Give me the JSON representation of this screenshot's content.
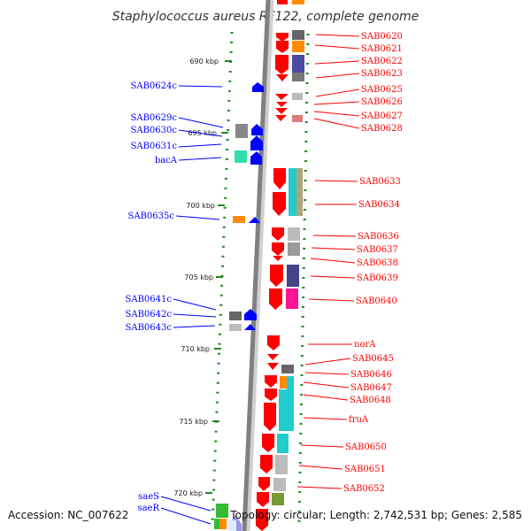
{
  "title": "Staphylococcus aureus RF122, complete genome",
  "footer": {
    "accession": "Accession: NC_007622",
    "topology": "Topology: circular; Length: 2,742,531 bp; Genes: 2,585"
  },
  "colors": {
    "forward": "#ff0000",
    "reverse": "#0000ff"
  },
  "ticks": [
    "690 kbp",
    "695 kbp",
    "700 kbp",
    "705 kbp",
    "710 kbp",
    "715 kbp",
    "720 kbp"
  ],
  "genes_forward": [
    "SAB0620",
    "SAB0621",
    "SAB0622",
    "SAB0623",
    "SAB0625",
    "SAB0626",
    "SAB0627",
    "SAB0628",
    "SAB0633",
    "SAB0634",
    "SAB0636",
    "SAB0637",
    "SAB0638",
    "SAB0639",
    "SAB0640",
    "norA",
    "SAB0645",
    "SAB0646",
    "SAB0647",
    "SAB0648",
    "fruA",
    "SAB0650",
    "SAB0651",
    "SAB0652"
  ],
  "genes_reverse": [
    "SAB0624c",
    "SAB0629c",
    "SAB0630c",
    "SAB0631c",
    "bacA",
    "SAB0635c",
    "SAB0641c",
    "SAB0642c",
    "SAB0643c",
    "saeS",
    "saeR"
  ]
}
